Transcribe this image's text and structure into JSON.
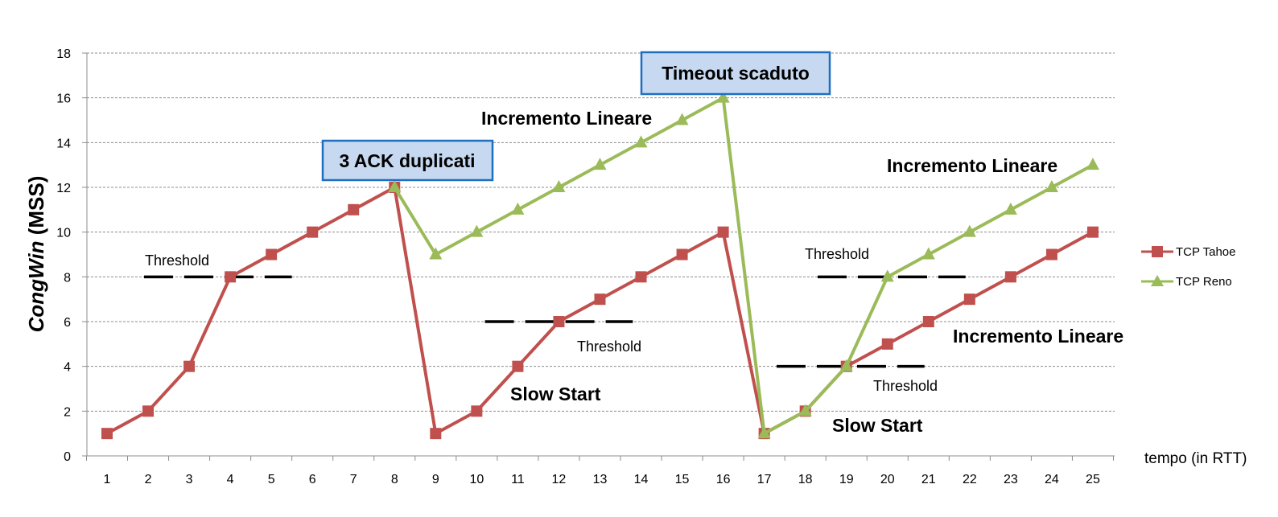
{
  "chart_data": {
    "type": "line",
    "ylabel_main": "CongWin",
    "ylabel_unit": " (MSS)",
    "xlabel": "tempo (in RTT)",
    "ylim": [
      0,
      18
    ],
    "yticks": [
      0,
      2,
      4,
      6,
      8,
      10,
      12,
      14,
      16,
      18
    ],
    "xlim": [
      1,
      25
    ],
    "x": [
      1,
      2,
      3,
      4,
      5,
      6,
      7,
      8,
      9,
      10,
      11,
      12,
      13,
      14,
      15,
      16,
      17,
      18,
      19,
      20,
      21,
      22,
      23,
      24,
      25
    ],
    "grid": true,
    "legend_position": "right",
    "series": [
      {
        "name": "TCP Tahoe",
        "color": "#C0504D",
        "marker": "square",
        "x": [
          1,
          2,
          3,
          4,
          5,
          6,
          7,
          8,
          9,
          10,
          11,
          12,
          13,
          14,
          15,
          16,
          17,
          18,
          19,
          20,
          21,
          22,
          23,
          24,
          25
        ],
        "values": [
          1,
          2,
          4,
          8,
          9,
          10,
          11,
          12,
          1,
          2,
          4,
          6,
          7,
          8,
          9,
          10,
          1,
          2,
          4,
          5,
          6,
          7,
          8,
          9,
          10
        ]
      },
      {
        "name": "TCP Reno",
        "color": "#9BBB59",
        "marker": "triangle",
        "x": [
          8,
          9,
          10,
          11,
          12,
          13,
          14,
          15,
          16,
          17,
          18,
          19,
          20,
          21,
          22,
          23,
          24,
          25
        ],
        "values": [
          12,
          9,
          10,
          11,
          12,
          13,
          14,
          15,
          16,
          1,
          2,
          4,
          8,
          9,
          10,
          11,
          12,
          13
        ]
      }
    ],
    "thresholds": [
      {
        "label": "Threshold",
        "y": 8,
        "x_from": 1.9,
        "x_to": 5.5
      },
      {
        "label": "Threshold",
        "y": 6,
        "x_from": 10.2,
        "x_to": 13.8
      },
      {
        "label": "Threshold",
        "y": 4,
        "x_from": 17.3,
        "x_to": 20.9
      },
      {
        "label": "Threshold",
        "y": 8,
        "x_from": 18.3,
        "x_to": 21.9
      }
    ],
    "annotations": {
      "box_3ack": "3 ACK duplicati",
      "box_timeout": "Timeout scaduto",
      "linear_1": "Incremento Lineare",
      "linear_2": "Incremento Lineare",
      "linear_3": "Incremento Lineare",
      "slow_start_1": "Slow Start",
      "slow_start_2": "Slow Start"
    },
    "annotation_box_fill": "#C6D9F1",
    "annotation_box_border": "#1F6FC0"
  }
}
